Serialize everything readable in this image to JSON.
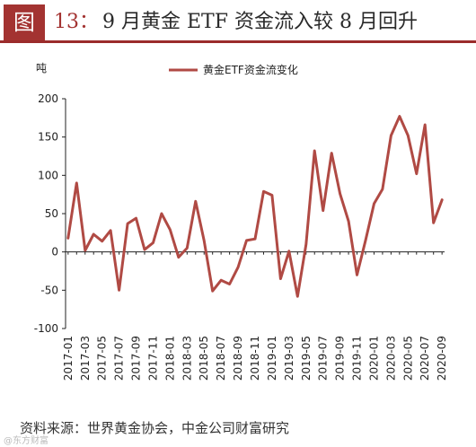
{
  "figure": {
    "label": "图",
    "number": "13：",
    "title": "9 月黄金 ETF 资金流入较 8 月回升"
  },
  "source": "资料来源：世界黄金协会，中金公司财富研究",
  "watermark": "@东方财富",
  "colors": {
    "line": "#b04a44",
    "accent": "#a33331"
  },
  "chart_data": {
    "type": "line",
    "title": "",
    "xlabel": "",
    "ylabel": "吨",
    "ylim": [
      -100,
      200
    ],
    "yticks": [
      -100,
      -50,
      0,
      50,
      100,
      150,
      200
    ],
    "grid": false,
    "legend": "top-center",
    "x": [
      "2017-01",
      "2017-02",
      "2017-03",
      "2017-04",
      "2017-05",
      "2017-06",
      "2017-07",
      "2017-08",
      "2017-09",
      "2017-10",
      "2017-11",
      "2017-12",
      "2018-01",
      "2018-02",
      "2018-03",
      "2018-04",
      "2018-05",
      "2018-06",
      "2018-07",
      "2018-08",
      "2018-09",
      "2018-10",
      "2018-11",
      "2018-12",
      "2019-01",
      "2019-02",
      "2019-03",
      "2019-04",
      "2019-05",
      "2019-06",
      "2019-07",
      "2019-08",
      "2019-09",
      "2019-10",
      "2019-11",
      "2019-12",
      "2020-01",
      "2020-02",
      "2020-03",
      "2020-04",
      "2020-05",
      "2020-06",
      "2020-07",
      "2020-08",
      "2020-09"
    ],
    "xtick_labels": [
      "2017-01",
      "2017-03",
      "2017-05",
      "2017-07",
      "2017-09",
      "2017-11",
      "2018-01",
      "2018-03",
      "2018-05",
      "2018-07",
      "2018-09",
      "2018-11",
      "2019-01",
      "2019-03",
      "2019-05",
      "2019-07",
      "2019-09",
      "2019-11",
      "2020-01",
      "2020-03",
      "2020-05",
      "2020-07",
      "2020-09"
    ],
    "series": [
      {
        "name": "黄金ETF资金流变化",
        "values": [
          18,
          90,
          2,
          23,
          14,
          28,
          -50,
          37,
          44,
          3,
          12,
          50,
          29,
          -7,
          5,
          66,
          15,
          -51,
          -37,
          -42,
          -20,
          15,
          17,
          79,
          74,
          -35,
          1,
          -58,
          10,
          132,
          54,
          129,
          76,
          40,
          -30,
          15,
          63,
          82,
          152,
          177,
          152,
          102,
          166,
          38,
          68
        ]
      }
    ]
  }
}
